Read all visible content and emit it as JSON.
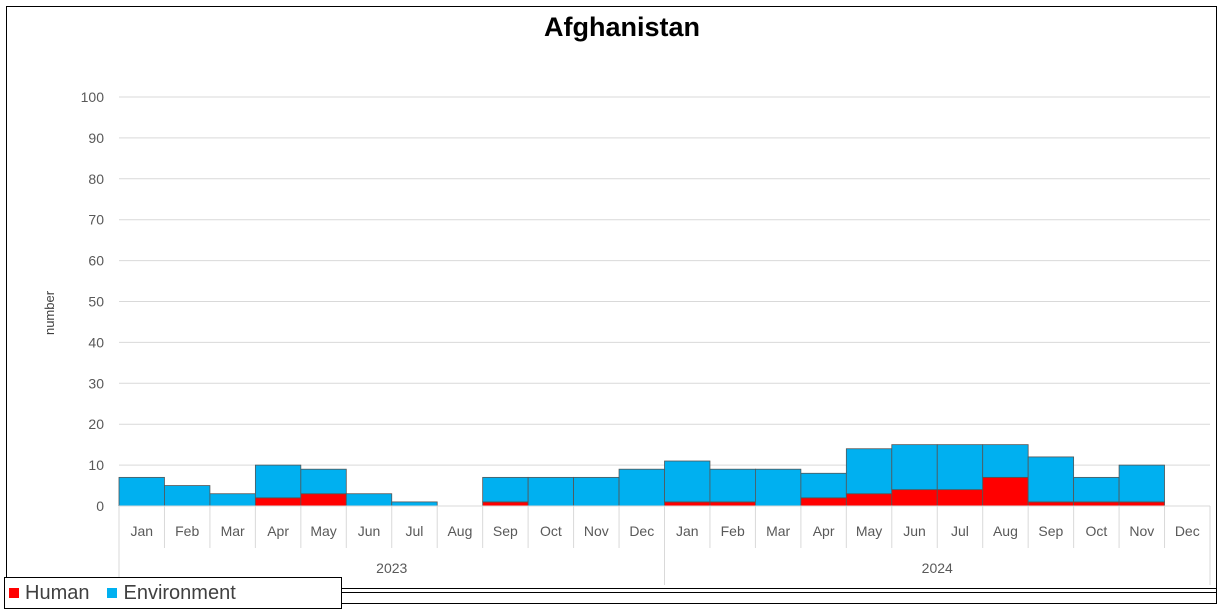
{
  "chart_data": {
    "type": "bar",
    "stacked": true,
    "title": "Afghanistan",
    "ylabel": "number",
    "ylim": [
      0,
      100
    ],
    "yticks": [
      0,
      10,
      20,
      30,
      40,
      50,
      60,
      70,
      80,
      90,
      100
    ],
    "grid": true,
    "legend_position": "bottom-left",
    "categories": [
      "Jan",
      "Feb",
      "Mar",
      "Apr",
      "May",
      "Jun",
      "Jul",
      "Aug",
      "Sep",
      "Oct",
      "Nov",
      "Dec",
      "Jan",
      "Feb",
      "Mar",
      "Apr",
      "May",
      "Jun",
      "Jul",
      "Aug",
      "Sep",
      "Oct",
      "Nov",
      "Dec"
    ],
    "groups": [
      {
        "label": "2023",
        "count": 12
      },
      {
        "label": "2024",
        "count": 12
      }
    ],
    "series": [
      {
        "name": "Human",
        "color": "#ff0000",
        "values": [
          0,
          0,
          0,
          2,
          3,
          0,
          0,
          0,
          1,
          0,
          0,
          0,
          1,
          1,
          0,
          2,
          3,
          4,
          4,
          7,
          1,
          1,
          1,
          0
        ]
      },
      {
        "name": "Environment",
        "color": "#00b0f0",
        "values": [
          7,
          5,
          3,
          8,
          6,
          3,
          1,
          0,
          6,
          7,
          7,
          9,
          10,
          8,
          9,
          6,
          11,
          11,
          11,
          8,
          11,
          6,
          9,
          0
        ]
      }
    ]
  }
}
